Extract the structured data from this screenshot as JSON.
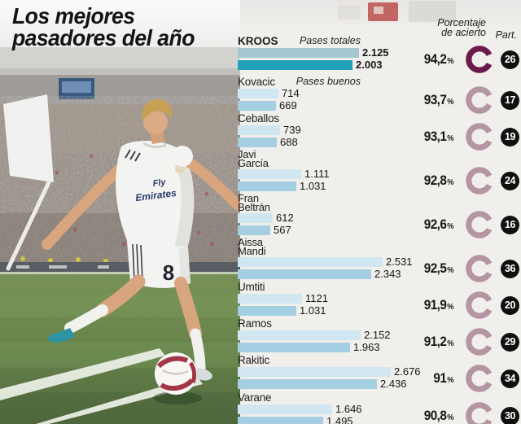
{
  "title": {
    "line1": "Los mejores",
    "line2": "pasadores del año"
  },
  "legend": {
    "totales": "Pases totales",
    "buenos": "Pases buenos"
  },
  "columns": {
    "accuracy_line1": "Porcentaje",
    "accuracy_line2": "de acierto",
    "part": "Part."
  },
  "jersey": {
    "sponsor_line1": "Fly",
    "sponsor_line2": "Emirates",
    "number": "8"
  },
  "colors": {
    "bar_total_highlight": "#a4c6d1",
    "bar_good_highlight": "#22a2ba",
    "bar_total": "#d0e6f0",
    "bar_good": "#a4cfe2",
    "donut_highlight": "#6c1a4b",
    "donut_normal": "#b495a3",
    "badge_bg": "#101010",
    "badge_text": "#ffffff"
  },
  "players": [
    {
      "name_lines": [
        "KROOS"
      ],
      "highlight": true,
      "totales_label": "2.125",
      "buenos_label": "2.003",
      "totales": 2125,
      "buenos": 2003,
      "pct": "94,2%",
      "part": "26"
    },
    {
      "name_lines": [
        "Kovacic"
      ],
      "totales_label": "714",
      "buenos_label": "669",
      "totales": 714,
      "buenos": 669,
      "pct": "93,7%",
      "part": "17"
    },
    {
      "name_lines": [
        "Ceballos"
      ],
      "totales_label": "739",
      "buenos_label": "688",
      "totales": 739,
      "buenos": 688,
      "pct": "93,1%",
      "part": "19"
    },
    {
      "name_lines": [
        "Javi",
        "García"
      ],
      "totales_label": "1.111",
      "buenos_label": "1.031",
      "totales": 1111,
      "buenos": 1031,
      "pct": "92,8%",
      "part": "24"
    },
    {
      "name_lines": [
        "Fran",
        "Beltrán"
      ],
      "totales_label": "612",
      "buenos_label": "567",
      "totales": 612,
      "buenos": 567,
      "pct": "92,6%",
      "part": "16"
    },
    {
      "name_lines": [
        "Aissa",
        "Mandi"
      ],
      "totales_label": "2.531",
      "buenos_label": "2.343",
      "totales": 2531,
      "buenos": 2343,
      "pct": "92,5%",
      "part": "36"
    },
    {
      "name_lines": [
        "Umtiti"
      ],
      "totales_label": "1121",
      "buenos_label": "1.031",
      "totales": 1121,
      "buenos": 1031,
      "pct": "91,9%",
      "part": "20"
    },
    {
      "name_lines": [
        "Ramos"
      ],
      "totales_label": "2.152",
      "buenos_label": "1.963",
      "totales": 2152,
      "buenos": 1963,
      "pct": "91,2%",
      "part": "29"
    },
    {
      "name_lines": [
        "Rakitic"
      ],
      "totales_label": "2.676",
      "buenos_label": "2.436",
      "totales": 2676,
      "buenos": 2436,
      "pct": "91%",
      "part": "34"
    },
    {
      "name_lines": [
        "Varane"
      ],
      "totales_label": "1.646",
      "buenos_label": "1.495",
      "totales": 1646,
      "buenos": 1495,
      "pct": "90,8%",
      "part": "30"
    }
  ],
  "chart_data": {
    "type": "bar",
    "orientation": "horizontal",
    "title": "Los mejores pasadores del año",
    "categories": [
      "Kroos",
      "Kovacic",
      "Ceballos",
      "Javi García",
      "Fran Beltrán",
      "Aissa Mandi",
      "Umtiti",
      "Ramos",
      "Rakitic",
      "Varane"
    ],
    "series": [
      {
        "name": "Pases totales",
        "values": [
          2125,
          714,
          739,
          1111,
          612,
          2531,
          1121,
          2152,
          2676,
          1646
        ]
      },
      {
        "name": "Pases buenos",
        "values": [
          2003,
          669,
          688,
          1031,
          567,
          2343,
          1031,
          1963,
          2436,
          1495
        ]
      }
    ],
    "porcentaje_de_acierto": [
      "94,2%",
      "93,7%",
      "93,1%",
      "92,8%",
      "92,6%",
      "92,5%",
      "91,9%",
      "91,2%",
      "91%",
      "90,8%"
    ],
    "partidos": [
      26,
      17,
      19,
      24,
      16,
      36,
      20,
      29,
      34,
      30
    ],
    "xlim": [
      0,
      2700
    ],
    "grid": false,
    "legend_position": "top"
  }
}
